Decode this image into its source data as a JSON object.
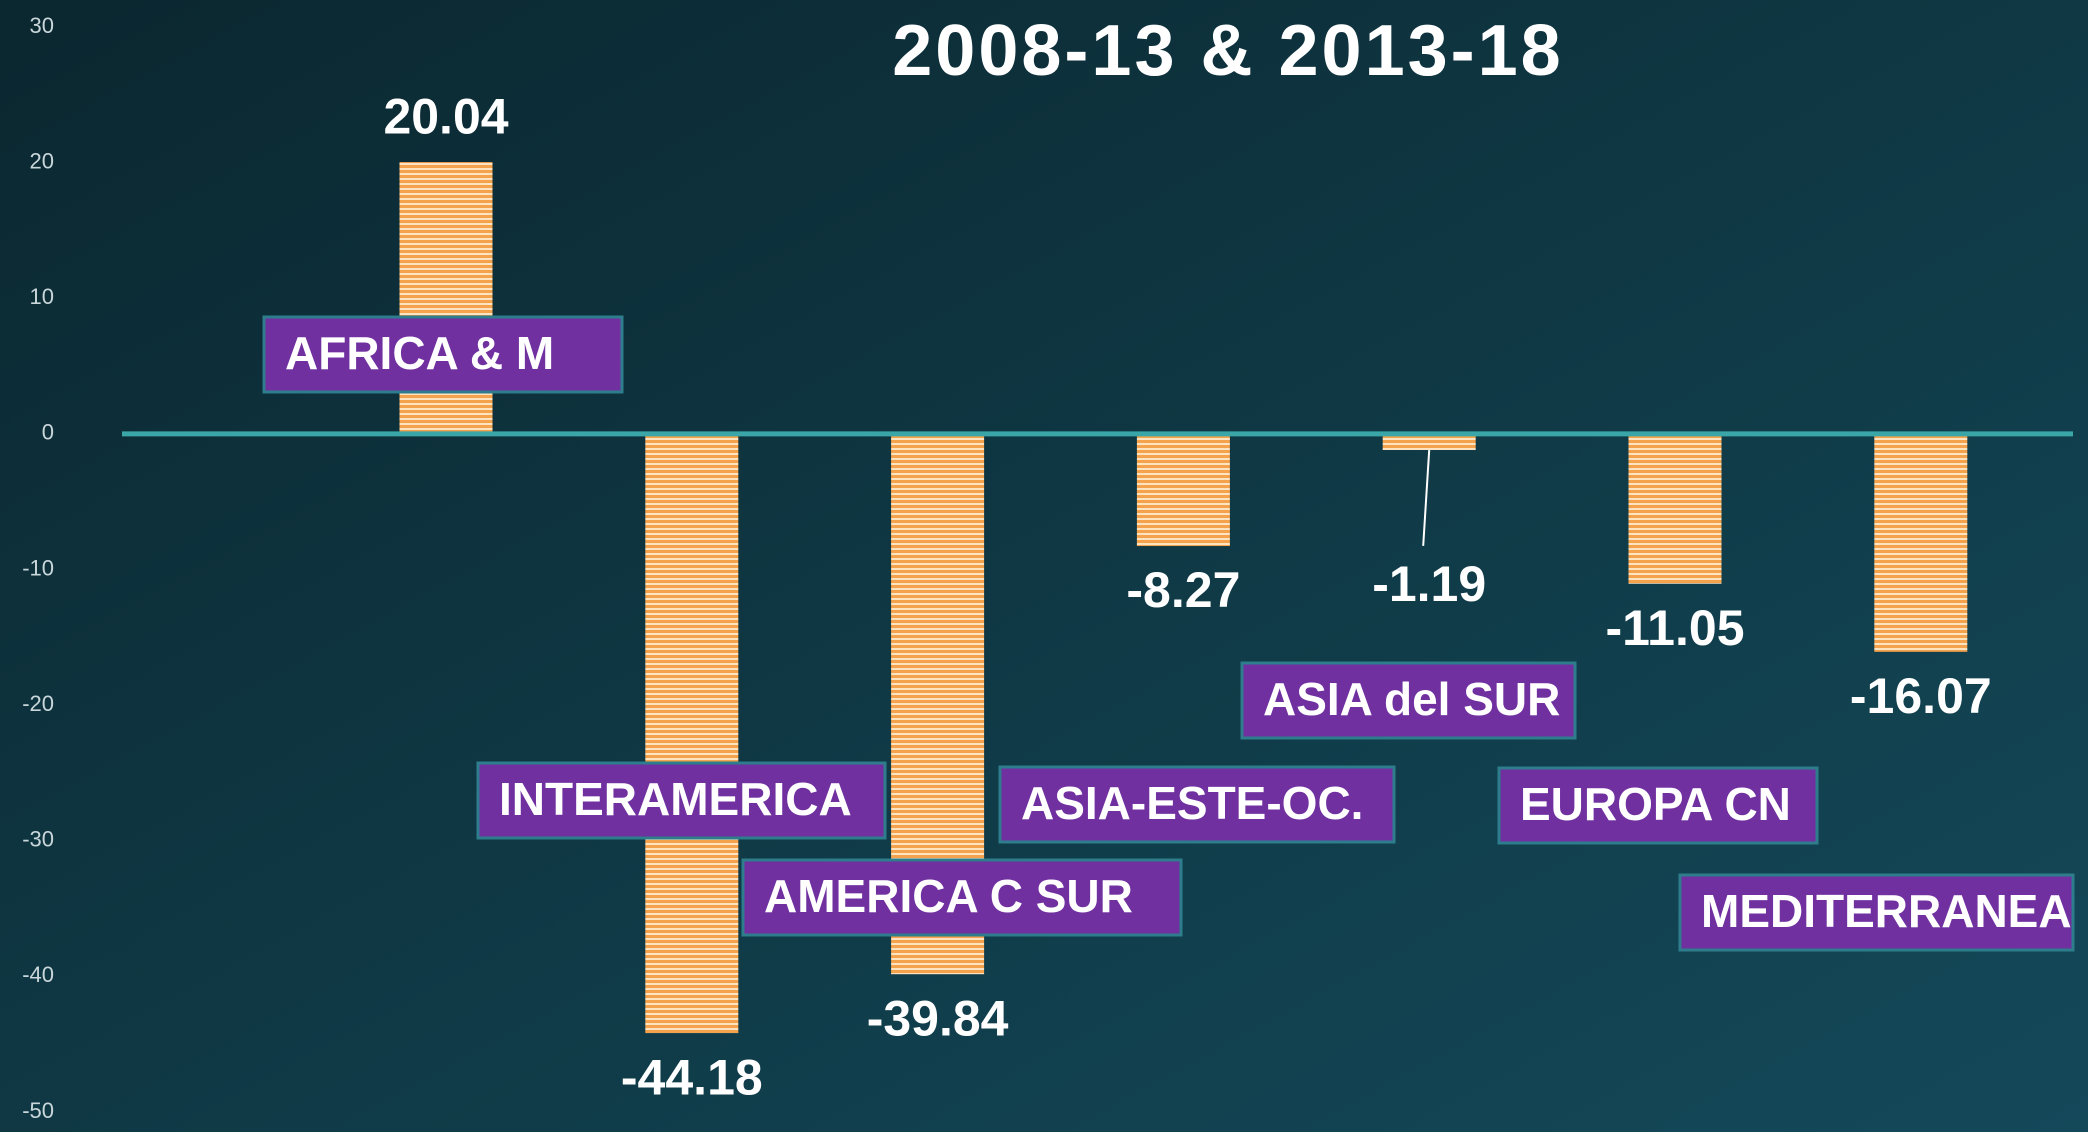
{
  "chart_data": {
    "type": "bar",
    "title": "2008-13 & 2013-18",
    "categories": [
      "AFRICA & M",
      "INTERAMERICA",
      "AMERICA C SUR",
      "ASIA-ESTE-OC.",
      "ASIA del SUR",
      "EUROPA CN",
      "MEDITERRANEA"
    ],
    "values": [
      20.04,
      -44.18,
      -39.84,
      -8.27,
      -1.19,
      -11.05,
      -16.07
    ],
    "color": "#f4a24c",
    "ylim": [
      -50,
      30
    ],
    "yticks": [
      -50,
      -40,
      -30,
      -20,
      -10,
      0,
      10,
      20,
      30
    ],
    "grid": false
  }
}
